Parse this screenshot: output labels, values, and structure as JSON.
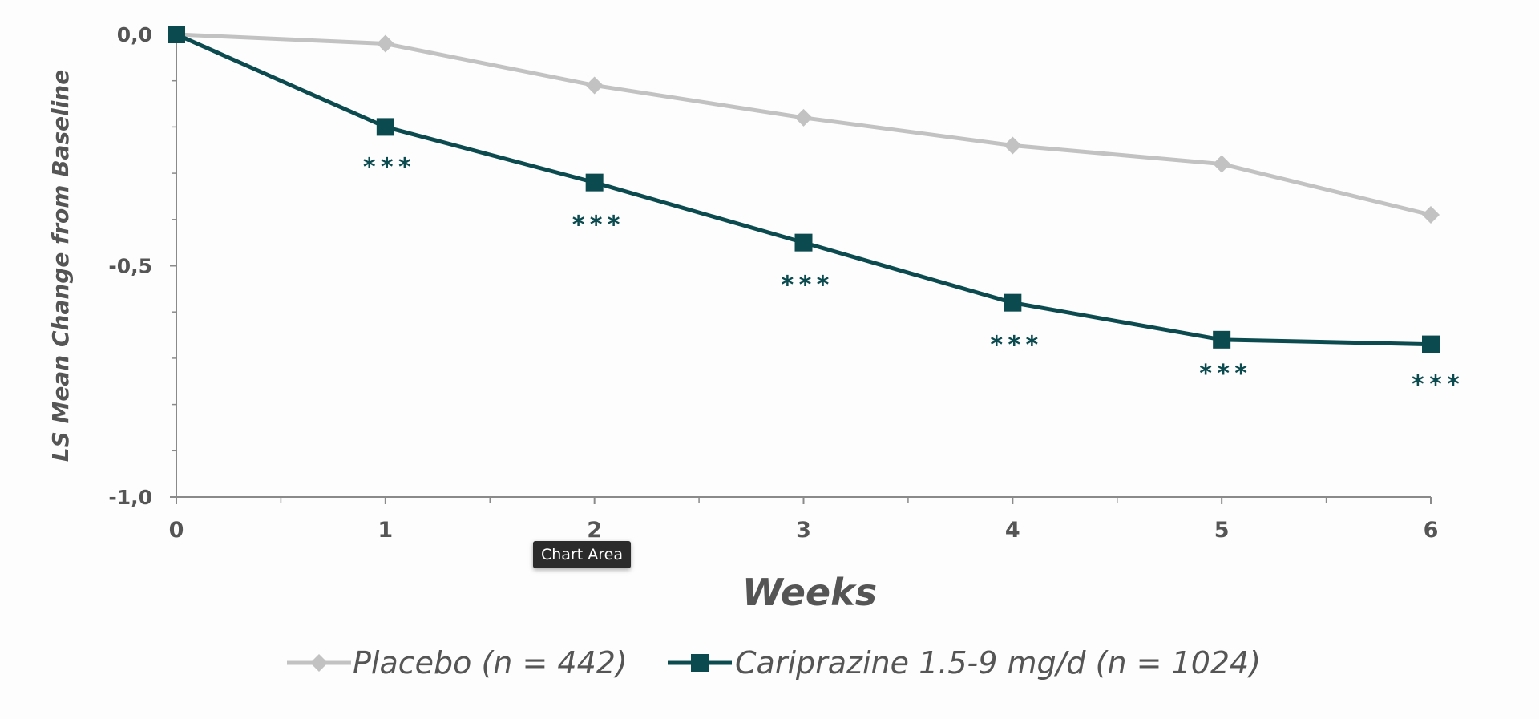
{
  "chart_data": {
    "type": "line",
    "xlabel": "Weeks",
    "ylabel": "LS Mean Change from Baseline",
    "x": [
      0,
      1,
      2,
      3,
      4,
      5,
      6
    ],
    "xlim": [
      0,
      6
    ],
    "ylim": [
      -1.0,
      0.0
    ],
    "yticks": [
      "0,0",
      "-0,5",
      "-1,0"
    ],
    "xticks": [
      "0",
      "1",
      "2",
      "3",
      "4",
      "5",
      "6"
    ],
    "grid": false,
    "legend_position": "bottom",
    "series": [
      {
        "name": "Placebo (n = 442)",
        "marker": "diamond",
        "color": "#c2c2c2",
        "values": [
          0.0,
          -0.02,
          -0.11,
          -0.18,
          -0.24,
          -0.28,
          -0.39
        ]
      },
      {
        "name": "Cariprazine 1.5-9 mg/d (n = 1024)",
        "marker": "square",
        "color": "#0b4b50",
        "values": [
          0.0,
          -0.2,
          -0.32,
          -0.45,
          -0.58,
          -0.66,
          -0.67
        ],
        "annotations": [
          "",
          "***",
          "***",
          "***",
          "***",
          "***",
          "***"
        ]
      }
    ]
  },
  "tooltip": {
    "label": "Chart Area"
  }
}
